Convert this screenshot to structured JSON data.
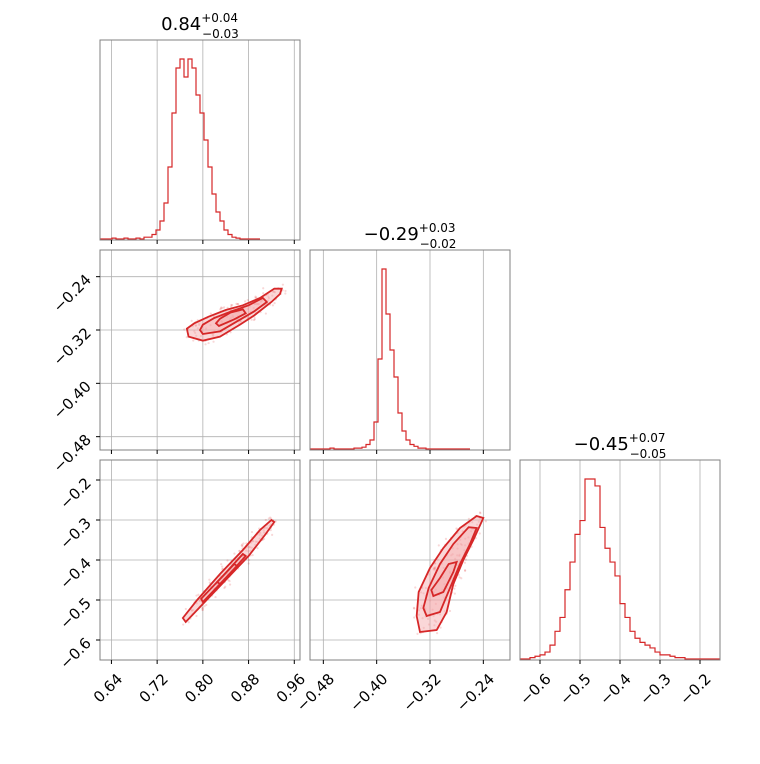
{
  "style": {
    "color": "#d62728",
    "fill_color": "#f4a6a8",
    "grid_color": "#b0b0b0",
    "frame_color": "#808080"
  },
  "titles": [
    {
      "value": "0.84",
      "plus": "+0.04",
      "minus": "−0.03"
    },
    {
      "value": "−0.29",
      "plus": "+0.03",
      "minus": "−0.02"
    },
    {
      "value": "−0.45",
      "plus": "+0.07",
      "minus": "−0.05"
    }
  ],
  "chart_data": {
    "type": "corner",
    "params": [
      {
        "range": [
          0.62,
          0.97
        ],
        "ticks": [
          0.64,
          0.72,
          0.8,
          0.88,
          0.96
        ],
        "tick_labels": [
          "0.64",
          "0.72",
          "0.80",
          "0.88",
          "0.96"
        ]
      },
      {
        "range": [
          -0.5,
          -0.2
        ],
        "ticks": [
          -0.48,
          -0.4,
          -0.32,
          -0.24
        ],
        "tick_labels": [
          "−0.48",
          "−0.40",
          "−0.32",
          "−0.24"
        ]
      },
      {
        "range": [
          -0.65,
          -0.15
        ],
        "ticks": [
          -0.6,
          -0.5,
          -0.4,
          -0.3,
          -0.2
        ],
        "tick_labels": [
          "−0.6",
          "−0.5",
          "−0.4",
          "−0.3",
          "−0.2"
        ]
      }
    ],
    "histograms": [
      {
        "param": 0,
        "bin_start": 0.62,
        "bin_width": 0.007,
        "counts": [
          0,
          0,
          0,
          1,
          0,
          0,
          1,
          0,
          0,
          1,
          0,
          2,
          2,
          5,
          10,
          20,
          40,
          80,
          140,
          190,
          200,
          180,
          200,
          190,
          160,
          140,
          110,
          80,
          50,
          30,
          20,
          10,
          5,
          2,
          1,
          0,
          0,
          0,
          0,
          0
        ]
      },
      {
        "param": 1,
        "bin_start": -0.5,
        "bin_width": 0.006,
        "counts": [
          0,
          0,
          0,
          0,
          0,
          1,
          0,
          0,
          0,
          0,
          0,
          1,
          1,
          2,
          5,
          10,
          30,
          100,
          200,
          150,
          110,
          80,
          40,
          20,
          10,
          5,
          3,
          1,
          1,
          0,
          0,
          0,
          0,
          0,
          0,
          0,
          0,
          0,
          0,
          0
        ]
      },
      {
        "param": 2,
        "bin_start": -0.65,
        "bin_width": 0.0125,
        "counts": [
          0,
          0,
          1,
          2,
          3,
          5,
          10,
          20,
          30,
          50,
          70,
          90,
          100,
          130,
          130,
          125,
          95,
          80,
          70,
          60,
          40,
          30,
          20,
          15,
          12,
          10,
          8,
          5,
          3,
          3,
          2,
          1,
          1,
          0,
          0,
          0,
          0,
          0,
          0,
          0
        ]
      }
    ],
    "contour_panels": [
      {
        "x_param": 0,
        "y_param": 1,
        "contours": [
          [
            [
              0.775,
              -0.33
            ],
            [
              0.8,
              -0.336
            ],
            [
              0.83,
              -0.33
            ],
            [
              0.865,
              -0.312
            ],
            [
              0.89,
              -0.298
            ],
            [
              0.92,
              -0.278
            ],
            [
              0.935,
              -0.266
            ],
            [
              0.938,
              -0.258
            ],
            [
              0.925,
              -0.258
            ],
            [
              0.9,
              -0.272
            ],
            [
              0.87,
              -0.283
            ],
            [
              0.84,
              -0.29
            ],
            [
              0.81,
              -0.3
            ],
            [
              0.785,
              -0.31
            ],
            [
              0.772,
              -0.318
            ]
          ],
          [
            [
              0.8,
              -0.326
            ],
            [
              0.83,
              -0.322
            ],
            [
              0.86,
              -0.307
            ],
            [
              0.89,
              -0.292
            ],
            [
              0.912,
              -0.278
            ],
            [
              0.905,
              -0.272
            ],
            [
              0.88,
              -0.283
            ],
            [
              0.85,
              -0.292
            ],
            [
              0.82,
              -0.302
            ],
            [
              0.8,
              -0.312
            ],
            [
              0.795,
              -0.32
            ]
          ],
          [
            [
              0.828,
              -0.314
            ],
            [
              0.855,
              -0.304
            ],
            [
              0.875,
              -0.295
            ],
            [
              0.87,
              -0.289
            ],
            [
              0.848,
              -0.294
            ],
            [
              0.83,
              -0.303
            ],
            [
              0.823,
              -0.31
            ]
          ]
        ]
      },
      {
        "x_param": 0,
        "y_param": 2,
        "contours": [
          [
            [
              0.77,
              -0.555
            ],
            [
              0.8,
              -0.51
            ],
            [
              0.84,
              -0.45
            ],
            [
              0.88,
              -0.39
            ],
            [
              0.91,
              -0.335
            ],
            [
              0.925,
              -0.305
            ],
            [
              0.92,
              -0.3
            ],
            [
              0.9,
              -0.325
            ],
            [
              0.87,
              -0.375
            ],
            [
              0.83,
              -0.435
            ],
            [
              0.79,
              -0.5
            ],
            [
              0.765,
              -0.545
            ]
          ],
          [
            [
              0.8,
              -0.505
            ],
            [
              0.84,
              -0.445
            ],
            [
              0.875,
              -0.39
            ],
            [
              0.87,
              -0.385
            ],
            [
              0.835,
              -0.44
            ],
            [
              0.797,
              -0.497
            ]
          ],
          [
            [
              0.83,
              -0.46
            ],
            [
              0.86,
              -0.415
            ],
            [
              0.855,
              -0.41
            ],
            [
              0.825,
              -0.455
            ]
          ]
        ]
      },
      {
        "x_param": 1,
        "y_param": 2,
        "contours": [
          [
            [
              -0.335,
              -0.58
            ],
            [
              -0.31,
              -0.575
            ],
            [
              -0.295,
              -0.53
            ],
            [
              -0.285,
              -0.46
            ],
            [
              -0.27,
              -0.4
            ],
            [
              -0.255,
              -0.35
            ],
            [
              -0.24,
              -0.295
            ],
            [
              -0.25,
              -0.29
            ],
            [
              -0.275,
              -0.32
            ],
            [
              -0.3,
              -0.37
            ],
            [
              -0.32,
              -0.42
            ],
            [
              -0.337,
              -0.48
            ],
            [
              -0.34,
              -0.54
            ]
          ],
          [
            [
              -0.325,
              -0.54
            ],
            [
              -0.305,
              -0.53
            ],
            [
              -0.29,
              -0.47
            ],
            [
              -0.275,
              -0.41
            ],
            [
              -0.26,
              -0.36
            ],
            [
              -0.25,
              -0.32
            ],
            [
              -0.262,
              -0.318
            ],
            [
              -0.285,
              -0.36
            ],
            [
              -0.305,
              -0.41
            ],
            [
              -0.322,
              -0.47
            ],
            [
              -0.33,
              -0.52
            ]
          ],
          [
            [
              -0.315,
              -0.49
            ],
            [
              -0.3,
              -0.48
            ],
            [
              -0.285,
              -0.43
            ],
            [
              -0.28,
              -0.405
            ],
            [
              -0.292,
              -0.41
            ],
            [
              -0.305,
              -0.445
            ],
            [
              -0.318,
              -0.475
            ]
          ]
        ]
      }
    ]
  }
}
